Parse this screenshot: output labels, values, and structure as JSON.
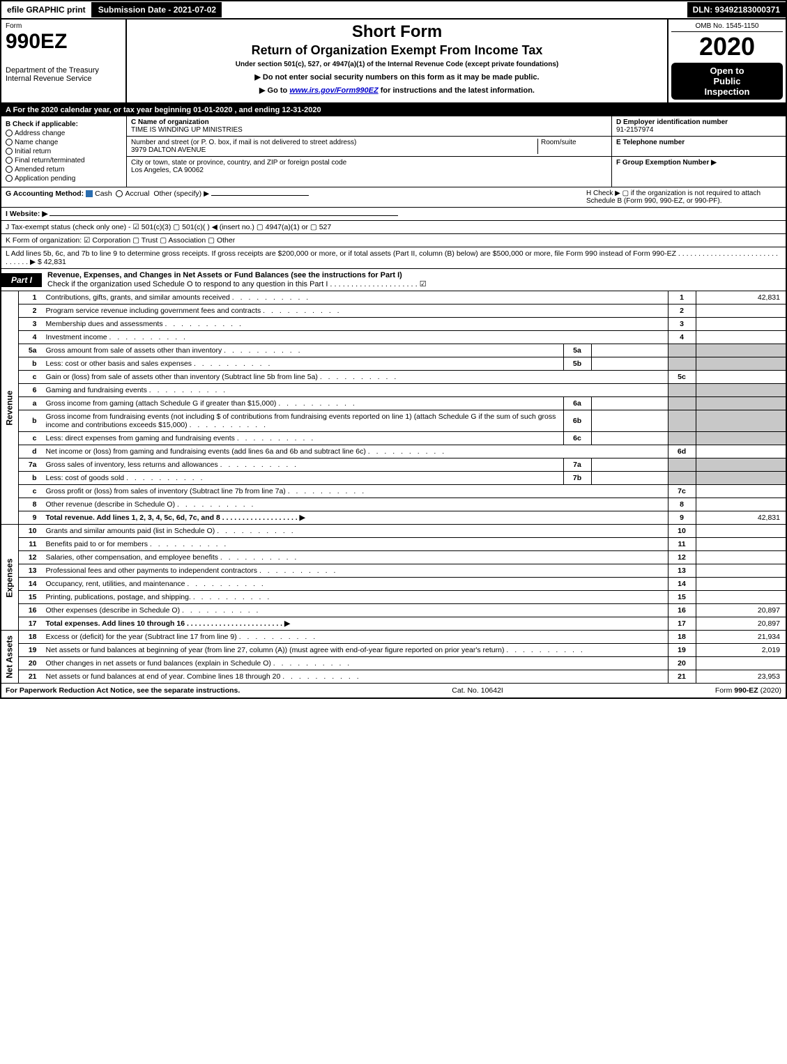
{
  "topbar": {
    "efile": "efile GRAPHIC print",
    "submission": "Submission Date - 2021-07-02",
    "dln": "DLN: 93492183000371"
  },
  "header": {
    "form_label": "Form",
    "form_number": "990EZ",
    "dept": "Department of the Treasury",
    "irs": "Internal Revenue Service",
    "short_form": "Short Form",
    "title": "Return of Organization Exempt From Income Tax",
    "subtitle": "Under section 501(c), 527, or 4947(a)(1) of the Internal Revenue Code (except private foundations)",
    "warn": "▶ Do not enter social security numbers on this form as it may be made public.",
    "goto_pre": "▶ Go to ",
    "goto_link": "www.irs.gov/Form990EZ",
    "goto_post": " for instructions and the latest information.",
    "omb": "OMB No. 1545-1150",
    "year": "2020",
    "open1": "Open to",
    "open2": "Public",
    "open3": "Inspection"
  },
  "period": "A  For the 2020 calendar year, or tax year beginning 01-01-2020 , and ending 12-31-2020",
  "section_b": {
    "title": "B  Check if applicable:",
    "items": [
      "Address change",
      "Name change",
      "Initial return",
      "Final return/terminated",
      "Amended return",
      "Application pending"
    ]
  },
  "section_c": {
    "label": "C Name of organization",
    "name": "TIME IS WINDING UP MINISTRIES",
    "addr_label": "Number and street (or P. O. box, if mail is not delivered to street address)",
    "room_label": "Room/suite",
    "addr": "3979 DALTON AVENUE",
    "city_label": "City or town, state or province, country, and ZIP or foreign postal code",
    "city": "Los Angeles, CA  90062"
  },
  "section_d": {
    "label": "D Employer identification number",
    "ein": "91-2157974",
    "tel_label": "E Telephone number",
    "f_label": "F Group Exemption Number   ▶"
  },
  "g_line": {
    "label": "G Accounting Method:",
    "cash": "Cash",
    "accrual": "Accrual",
    "other": "Other (specify) ▶"
  },
  "h_line": "H   Check ▶  ▢  if the organization is not required to attach Schedule B (Form 990, 990-EZ, or 990-PF).",
  "i_line": "I Website: ▶",
  "j_line": "J Tax-exempt status (check only one) -  ☑ 501(c)(3)  ▢ 501(c)(   ) ◀ (insert no.)  ▢ 4947(a)(1) or  ▢ 527",
  "k_line": "K Form of organization:   ☑ Corporation   ▢ Trust   ▢ Association   ▢ Other",
  "l_line": {
    "text": "L Add lines 5b, 6c, and 7b to line 9 to determine gross receipts. If gross receipts are $200,000 or more, or if total assets (Part II, column (B) below) are $500,000 or more, file Form 990 instead of Form 990-EZ . . . . . . . . . . . . . . . . . . . . . . . . . . . . . . . ▶ ",
    "amount": "$ 42,831"
  },
  "part1": {
    "tag": "Part I",
    "title": "Revenue, Expenses, and Changes in Net Assets or Fund Balances (see the instructions for Part I)",
    "check_line": "Check if the organization used Schedule O to respond to any question in this Part I . . . . . . . . . . . . . . . . . . . . . ☑"
  },
  "side_labels": {
    "revenue": "Revenue",
    "expenses": "Expenses",
    "netassets": "Net Assets"
  },
  "rows": [
    {
      "n": "1",
      "desc": "Contributions, gifts, grants, and similar amounts received",
      "ln": "1",
      "amt": "42,831"
    },
    {
      "n": "2",
      "desc": "Program service revenue including government fees and contracts",
      "ln": "2",
      "amt": ""
    },
    {
      "n": "3",
      "desc": "Membership dues and assessments",
      "ln": "3",
      "amt": ""
    },
    {
      "n": "4",
      "desc": "Investment income",
      "ln": "4",
      "amt": ""
    },
    {
      "n": "5a",
      "desc": "Gross amount from sale of assets other than inventory",
      "box": "5a",
      "grey": true
    },
    {
      "n": "b",
      "desc": "Less: cost or other basis and sales expenses",
      "box": "5b",
      "grey": true
    },
    {
      "n": "c",
      "desc": "Gain or (loss) from sale of assets other than inventory (Subtract line 5b from line 5a)",
      "ln": "5c",
      "amt": ""
    },
    {
      "n": "6",
      "desc": "Gaming and fundraising events",
      "grey": true
    },
    {
      "n": "a",
      "desc": "Gross income from gaming (attach Schedule G if greater than $15,000)",
      "box": "6a",
      "grey": true
    },
    {
      "n": "b",
      "desc": "Gross income from fundraising events (not including $                   of contributions from fundraising events reported on line 1) (attach Schedule G if the sum of such gross income and contributions exceeds $15,000)",
      "box": "6b",
      "grey": true
    },
    {
      "n": "c",
      "desc": "Less: direct expenses from gaming and fundraising events",
      "box": "6c",
      "grey": true
    },
    {
      "n": "d",
      "desc": "Net income or (loss) from gaming and fundraising events (add lines 6a and 6b and subtract line 6c)",
      "ln": "6d",
      "amt": ""
    },
    {
      "n": "7a",
      "desc": "Gross sales of inventory, less returns and allowances",
      "box": "7a",
      "grey": true
    },
    {
      "n": "b",
      "desc": "Less: cost of goods sold",
      "box": "7b",
      "grey": true
    },
    {
      "n": "c",
      "desc": "Gross profit or (loss) from sales of inventory (Subtract line 7b from line 7a)",
      "ln": "7c",
      "amt": ""
    },
    {
      "n": "8",
      "desc": "Other revenue (describe in Schedule O)",
      "ln": "8",
      "amt": ""
    },
    {
      "n": "9",
      "desc": "Total revenue. Add lines 1, 2, 3, 4, 5c, 6d, 7c, and 8   . . . . . . . . . . . . . . . . . . . ▶",
      "ln": "9",
      "amt": "42,831",
      "bold": true
    }
  ],
  "exp_rows": [
    {
      "n": "10",
      "desc": "Grants and similar amounts paid (list in Schedule O)",
      "ln": "10",
      "amt": ""
    },
    {
      "n": "11",
      "desc": "Benefits paid to or for members",
      "ln": "11",
      "amt": ""
    },
    {
      "n": "12",
      "desc": "Salaries, other compensation, and employee benefits",
      "ln": "12",
      "amt": ""
    },
    {
      "n": "13",
      "desc": "Professional fees and other payments to independent contractors",
      "ln": "13",
      "amt": ""
    },
    {
      "n": "14",
      "desc": "Occupancy, rent, utilities, and maintenance",
      "ln": "14",
      "amt": ""
    },
    {
      "n": "15",
      "desc": "Printing, publications, postage, and shipping.",
      "ln": "15",
      "amt": ""
    },
    {
      "n": "16",
      "desc": "Other expenses (describe in Schedule O)",
      "ln": "16",
      "amt": "20,897"
    },
    {
      "n": "17",
      "desc": "Total expenses. Add lines 10 through 16  . . . . . . . . . . . . . . . . . . . . . . . . ▶",
      "ln": "17",
      "amt": "20,897",
      "bold": true
    }
  ],
  "net_rows": [
    {
      "n": "18",
      "desc": "Excess or (deficit) for the year (Subtract line 17 from line 9)",
      "ln": "18",
      "amt": "21,934"
    },
    {
      "n": "19",
      "desc": "Net assets or fund balances at beginning of year (from line 27, column (A)) (must agree with end-of-year figure reported on prior year's return)",
      "ln": "19",
      "amt": "2,019"
    },
    {
      "n": "20",
      "desc": "Other changes in net assets or fund balances (explain in Schedule O)",
      "ln": "20",
      "amt": ""
    },
    {
      "n": "21",
      "desc": "Net assets or fund balances at end of year. Combine lines 18 through 20",
      "ln": "21",
      "amt": "23,953"
    }
  ],
  "footer": {
    "left": "For Paperwork Reduction Act Notice, see the separate instructions.",
    "center": "Cat. No. 10642I",
    "right": "Form 990-EZ (2020)"
  },
  "colors": {
    "black": "#000000",
    "white": "#ffffff",
    "grey_cell": "#c8c8c8",
    "link_blue": "#0000cc",
    "check_blue": "#2a6db0"
  }
}
